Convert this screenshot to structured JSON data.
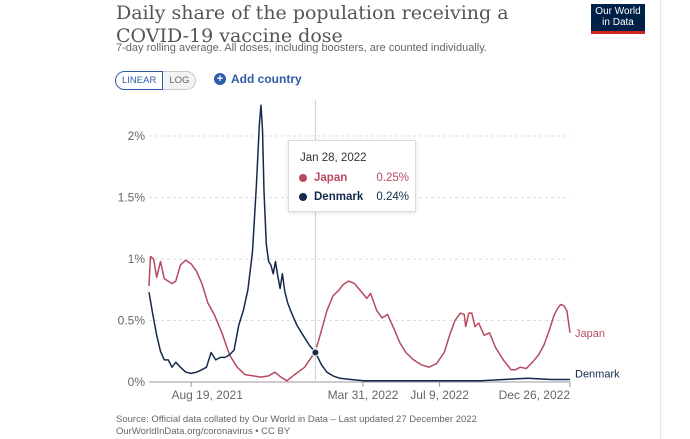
{
  "header": {
    "title": "Daily share of the population receiving a COVID-19 vaccine dose",
    "subtitle": "7-day rolling average. All doses, including boosters, are counted individually.",
    "logo_line1": "Our World",
    "logo_line2": "in Data"
  },
  "controls": {
    "linear": "LINEAR",
    "log": "LOG",
    "add_country": "Add country"
  },
  "tooltip": {
    "date": "Jan 28, 2022",
    "rows": [
      {
        "name": "Japan",
        "value": "0.25%",
        "color": "#b74a5e"
      },
      {
        "name": "Denmark",
        "value": "0.24%",
        "color": "#14294b"
      }
    ]
  },
  "footer": {
    "source": "Source: Official data collated by Our World in Data – Last updated 27 December 2022",
    "link": "OurWorldInData.org/coronavirus • CC BY"
  },
  "chart_data": {
    "type": "line",
    "title": "Daily share of the population receiving a COVID-19 vaccine dose",
    "ylim": [
      0,
      2.2
    ],
    "yticks": [
      "0%",
      "0.5%",
      "1%",
      "1.5%",
      "2%"
    ],
    "xticks": [
      "Aug 19, 2021",
      "Mar 31, 2022",
      "Jul 9, 2022",
      "Dec 26, 2022"
    ],
    "grid": true,
    "x_start": "2021-06-25",
    "x_end": "2022-12-26",
    "tooltip_date": "2022-01-28",
    "series": [
      {
        "name": "Japan",
        "color": "#b74a5e",
        "points": [
          [
            "2021-06-25",
            0.78
          ],
          [
            "2021-06-27",
            1.02
          ],
          [
            "2021-07-01",
            1.0
          ],
          [
            "2021-07-05",
            0.85
          ],
          [
            "2021-07-10",
            0.98
          ],
          [
            "2021-07-15",
            0.84
          ],
          [
            "2021-07-20",
            0.82
          ],
          [
            "2021-07-25",
            0.8
          ],
          [
            "2021-07-30",
            0.82
          ],
          [
            "2021-08-05",
            0.95
          ],
          [
            "2021-08-12",
            0.99
          ],
          [
            "2021-08-19",
            0.96
          ],
          [
            "2021-08-26",
            0.9
          ],
          [
            "2021-09-02",
            0.8
          ],
          [
            "2021-09-10",
            0.64
          ],
          [
            "2021-09-18",
            0.55
          ],
          [
            "2021-09-28",
            0.4
          ],
          [
            "2021-10-08",
            0.22
          ],
          [
            "2021-10-18",
            0.12
          ],
          [
            "2021-10-28",
            0.06
          ],
          [
            "2021-11-08",
            0.05
          ],
          [
            "2021-11-18",
            0.04
          ],
          [
            "2021-11-28",
            0.05
          ],
          [
            "2021-12-06",
            0.08
          ],
          [
            "2021-12-14",
            0.04
          ],
          [
            "2021-12-22",
            0.01
          ],
          [
            "2022-01-01",
            0.06
          ],
          [
            "2022-01-14",
            0.12
          ],
          [
            "2022-01-28",
            0.25
          ],
          [
            "2022-02-05",
            0.42
          ],
          [
            "2022-02-12",
            0.58
          ],
          [
            "2022-02-20",
            0.7
          ],
          [
            "2022-02-28",
            0.75
          ],
          [
            "2022-03-05",
            0.79
          ],
          [
            "2022-03-12",
            0.82
          ],
          [
            "2022-03-20",
            0.8
          ],
          [
            "2022-03-28",
            0.74
          ],
          [
            "2022-04-05",
            0.68
          ],
          [
            "2022-04-10",
            0.72
          ],
          [
            "2022-04-18",
            0.58
          ],
          [
            "2022-04-25",
            0.52
          ],
          [
            "2022-05-02",
            0.55
          ],
          [
            "2022-05-10",
            0.44
          ],
          [
            "2022-05-18",
            0.32
          ],
          [
            "2022-05-26",
            0.24
          ],
          [
            "2022-06-05",
            0.18
          ],
          [
            "2022-06-15",
            0.14
          ],
          [
            "2022-06-25",
            0.12
          ],
          [
            "2022-07-05",
            0.15
          ],
          [
            "2022-07-15",
            0.24
          ],
          [
            "2022-07-22",
            0.38
          ],
          [
            "2022-07-29",
            0.5
          ],
          [
            "2022-08-05",
            0.56
          ],
          [
            "2022-08-10",
            0.55
          ],
          [
            "2022-08-12",
            0.45
          ],
          [
            "2022-08-16",
            0.56
          ],
          [
            "2022-08-20",
            0.56
          ],
          [
            "2022-08-24",
            0.45
          ],
          [
            "2022-08-29",
            0.48
          ],
          [
            "2022-09-05",
            0.38
          ],
          [
            "2022-09-12",
            0.4
          ],
          [
            "2022-09-20",
            0.28
          ],
          [
            "2022-09-30",
            0.18
          ],
          [
            "2022-10-10",
            0.1
          ],
          [
            "2022-10-16",
            0.1
          ],
          [
            "2022-10-22",
            0.12
          ],
          [
            "2022-10-30",
            0.11
          ],
          [
            "2022-11-07",
            0.16
          ],
          [
            "2022-11-15",
            0.22
          ],
          [
            "2022-11-22",
            0.3
          ],
          [
            "2022-11-29",
            0.42
          ],
          [
            "2022-12-05",
            0.54
          ],
          [
            "2022-12-10",
            0.6
          ],
          [
            "2022-12-14",
            0.63
          ],
          [
            "2022-12-18",
            0.62
          ],
          [
            "2022-12-22",
            0.58
          ],
          [
            "2022-12-26",
            0.4
          ]
        ]
      },
      {
        "name": "Denmark",
        "color": "#14294b",
        "points": [
          [
            "2021-06-25",
            0.73
          ],
          [
            "2021-06-30",
            0.55
          ],
          [
            "2021-07-05",
            0.38
          ],
          [
            "2021-07-10",
            0.25
          ],
          [
            "2021-07-15",
            0.18
          ],
          [
            "2021-07-20",
            0.18
          ],
          [
            "2021-07-25",
            0.12
          ],
          [
            "2021-07-30",
            0.16
          ],
          [
            "2021-08-05",
            0.12
          ],
          [
            "2021-08-12",
            0.08
          ],
          [
            "2021-08-19",
            0.07
          ],
          [
            "2021-08-26",
            0.08
          ],
          [
            "2021-09-02",
            0.1
          ],
          [
            "2021-09-08",
            0.12
          ],
          [
            "2021-09-14",
            0.24
          ],
          [
            "2021-09-20",
            0.18
          ],
          [
            "2021-09-26",
            0.2
          ],
          [
            "2021-10-02",
            0.2
          ],
          [
            "2021-10-08",
            0.22
          ],
          [
            "2021-10-14",
            0.26
          ],
          [
            "2021-10-20",
            0.46
          ],
          [
            "2021-10-26",
            0.58
          ],
          [
            "2021-11-01",
            0.75
          ],
          [
            "2021-11-07",
            1.06
          ],
          [
            "2021-11-12",
            1.6
          ],
          [
            "2021-11-16",
            2.1
          ],
          [
            "2021-11-18",
            2.25
          ],
          [
            "2021-11-20",
            2.05
          ],
          [
            "2021-11-22",
            1.55
          ],
          [
            "2021-11-25",
            1.12
          ],
          [
            "2021-11-28",
            0.98
          ],
          [
            "2021-12-01",
            0.95
          ],
          [
            "2021-12-04",
            0.88
          ],
          [
            "2021-12-07",
            0.98
          ],
          [
            "2021-12-10",
            0.86
          ],
          [
            "2021-12-13",
            0.76
          ],
          [
            "2021-12-16",
            0.88
          ],
          [
            "2021-12-19",
            0.74
          ],
          [
            "2021-12-23",
            0.64
          ],
          [
            "2021-12-28",
            0.56
          ],
          [
            "2022-01-04",
            0.46
          ],
          [
            "2022-01-12",
            0.38
          ],
          [
            "2022-01-20",
            0.3
          ],
          [
            "2022-01-28",
            0.24
          ],
          [
            "2022-02-05",
            0.14
          ],
          [
            "2022-02-12",
            0.08
          ],
          [
            "2022-02-20",
            0.05
          ],
          [
            "2022-03-01",
            0.03
          ],
          [
            "2022-03-15",
            0.02
          ],
          [
            "2022-04-01",
            0.01
          ],
          [
            "2022-06-01",
            0.01
          ],
          [
            "2022-09-01",
            0.01
          ],
          [
            "2022-10-01",
            0.02
          ],
          [
            "2022-11-01",
            0.03
          ],
          [
            "2022-12-01",
            0.02
          ],
          [
            "2022-12-26",
            0.02
          ]
        ]
      }
    ]
  }
}
